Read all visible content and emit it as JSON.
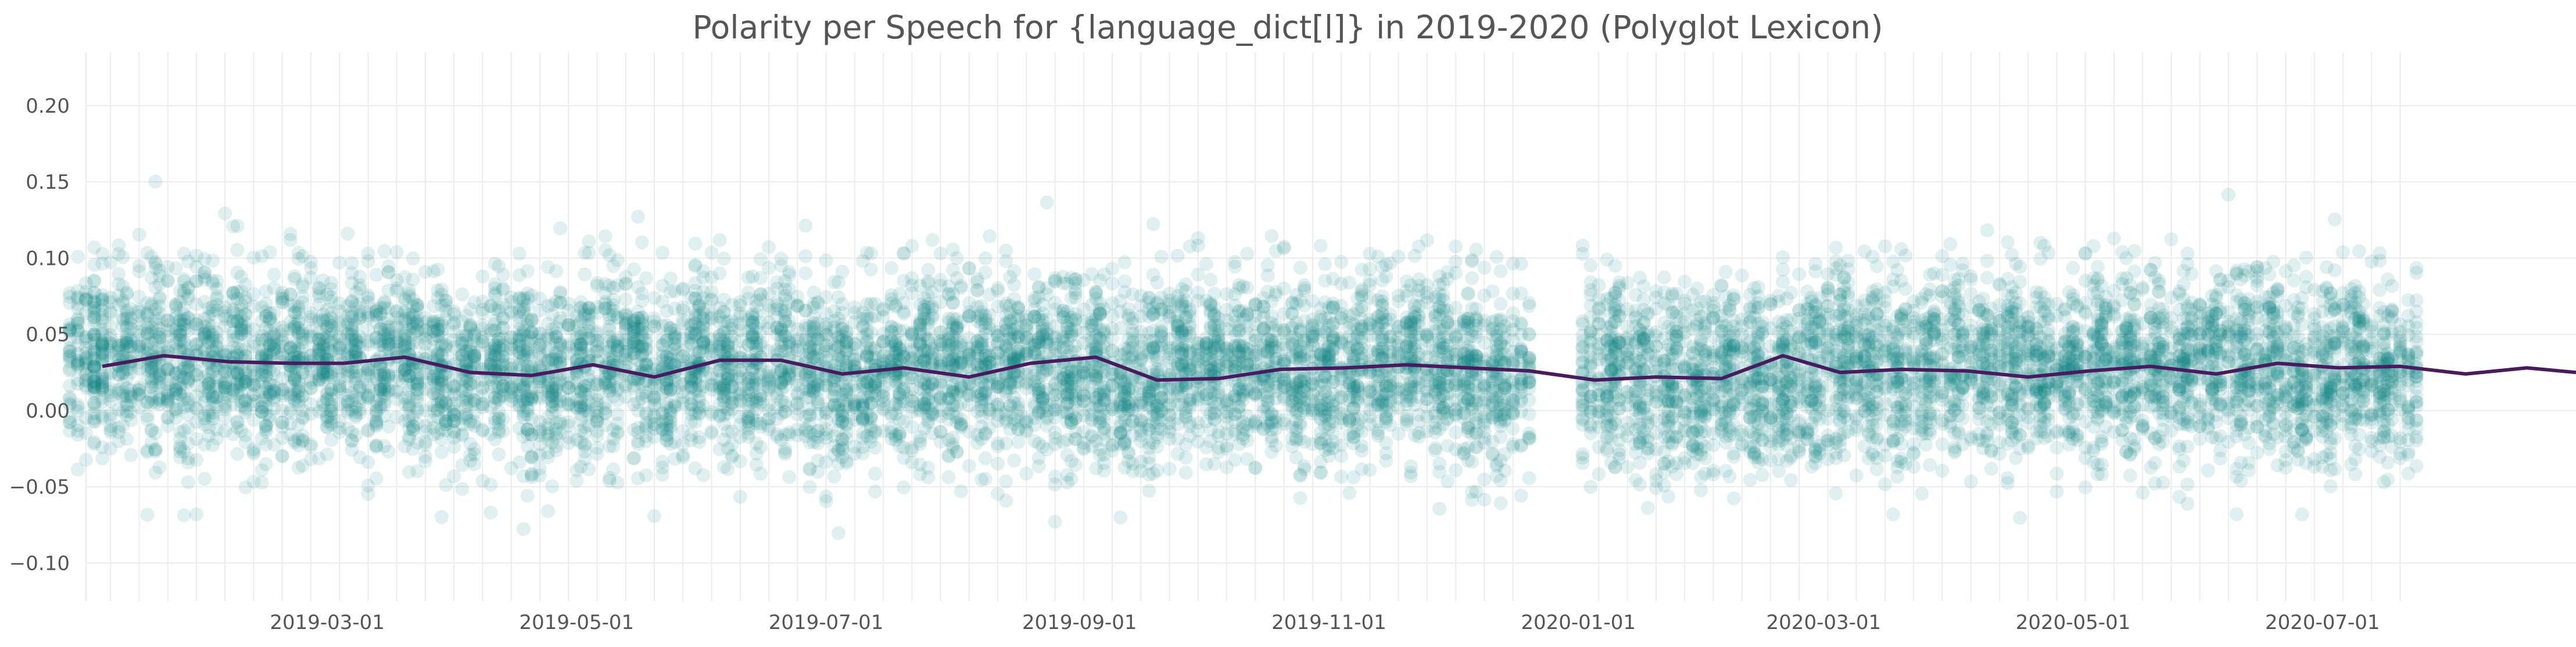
{
  "chart_data": {
    "type": "scatter",
    "title": "Polarity per Speech for {language_dict[l]} in 2019-2020 (Polyglot Lexicon)",
    "xlabel": "",
    "ylabel": "",
    "x_range": [
      "2019-01-01",
      "2020-09-01"
    ],
    "ylim": [
      -0.125,
      0.235
    ],
    "yticks": [
      -0.1,
      -0.05,
      0.0,
      0.05,
      0.1,
      0.15,
      0.2
    ],
    "ytick_labels": [
      "−0.10",
      "−0.05",
      "0.00",
      "0.05",
      "0.10",
      "0.15",
      "0.20"
    ],
    "xticks": [
      "2019-03-01",
      "2019-05-01",
      "2019-07-01",
      "2019-09-01",
      "2019-11-01",
      "2020-01-01",
      "2020-03-01",
      "2020-05-01",
      "2020-07-01"
    ],
    "xtick_labels": [
      "2019-03-01",
      "2019-05-01",
      "2019-07-01",
      "2019-09-01",
      "2019-11-01",
      "2020-01-01",
      "2020-03-01",
      "2020-05-01",
      "2020-07-01"
    ],
    "grid": true,
    "colors": {
      "points": "#0e8585",
      "line": "#4a1a5e",
      "grid": "#ececec",
      "title": "#555555",
      "ticks": "#555555"
    },
    "series": [
      {
        "type": "scatter",
        "description": "per-speech polarity, plotted per sitting day (one column per day, mean shown by line)",
        "days": [
          {
            "date": "2019-01-01",
            "mean": 0.04
          },
          {
            "date": "2019-01-07",
            "mean": 0.032
          },
          {
            "date": "2019-01-14",
            "mean": 0.036
          },
          {
            "date": "2019-01-21",
            "mean": 0.033
          },
          {
            "date": "2019-01-28",
            "mean": 0.032
          },
          {
            "date": "2019-02-04",
            "mean": 0.031
          },
          {
            "date": "2019-02-11",
            "mean": 0.029
          },
          {
            "date": "2019-02-18",
            "mean": 0.032
          },
          {
            "date": "2019-02-25",
            "mean": 0.031
          },
          {
            "date": "2019-03-04",
            "mean": 0.033
          },
          {
            "date": "2019-03-11",
            "mean": 0.034
          },
          {
            "date": "2019-03-18",
            "mean": 0.033
          },
          {
            "date": "2019-03-25",
            "mean": 0.027
          },
          {
            "date": "2019-04-01",
            "mean": 0.024
          },
          {
            "date": "2019-04-08",
            "mean": 0.023
          },
          {
            "date": "2019-04-15",
            "mean": 0.029
          },
          {
            "date": "2019-04-22",
            "mean": 0.022
          },
          {
            "date": "2019-04-29",
            "mean": 0.022
          },
          {
            "date": "2019-05-06",
            "mean": 0.033
          },
          {
            "date": "2019-05-13",
            "mean": 0.033
          },
          {
            "date": "2019-05-20",
            "mean": 0.025
          },
          {
            "date": "2019-05-27",
            "mean": 0.024
          },
          {
            "date": "2019-06-03",
            "mean": 0.028
          },
          {
            "date": "2019-06-10",
            "mean": 0.021
          },
          {
            "date": "2019-06-17",
            "mean": 0.032
          },
          {
            "date": "2019-06-24",
            "mean": 0.036
          },
          {
            "date": "2019-07-01",
            "mean": 0.02
          },
          {
            "date": "2019-07-08",
            "mean": 0.021
          },
          {
            "date": "2019-07-15",
            "mean": 0.028
          },
          {
            "date": "2019-07-22",
            "mean": 0.029
          },
          {
            "date": "2019-07-29",
            "mean": 0.03
          },
          {
            "date": "2019-08-05",
            "mean": 0.031
          },
          {
            "date": "2019-08-12",
            "mean": 0.03
          },
          {
            "date": "2019-08-19",
            "mean": 0.028
          },
          {
            "date": "2019-08-26",
            "mean": 0.029
          },
          {
            "date": "2019-09-02",
            "mean": 0.02
          },
          {
            "date": "2019-09-09",
            "mean": 0.022
          },
          {
            "date": "2019-09-16",
            "mean": 0.02
          },
          {
            "date": "2019-09-23",
            "mean": 0.027
          },
          {
            "date": "2019-09-30",
            "mean": 0.036
          },
          {
            "date": "2019-10-07",
            "mean": 0.028
          },
          {
            "date": "2019-10-14",
            "mean": 0.033
          },
          {
            "date": "2019-10-21",
            "mean": 0.026
          },
          {
            "date": "2019-10-28",
            "mean": 0.022
          },
          {
            "date": "2019-11-04",
            "mean": 0.028
          },
          {
            "date": "2019-11-11",
            "mean": 0.025
          },
          {
            "date": "2019-11-18",
            "mean": 0.034
          },
          {
            "date": "2019-11-25",
            "mean": 0.03
          },
          {
            "date": "2019-12-02",
            "mean": 0.023
          },
          {
            "date": "2019-12-09",
            "mean": 0.022
          },
          {
            "date": "2019-12-16",
            "mean": 0.018
          },
          {
            "date": "2020-01-06",
            "mean": 0.026
          },
          {
            "date": "2020-01-13",
            "mean": 0.027
          },
          {
            "date": "2020-01-20",
            "mean": 0.013
          },
          {
            "date": "2020-01-27",
            "mean": 0.018
          },
          {
            "date": "2020-02-03",
            "mean": 0.024
          },
          {
            "date": "2020-02-10",
            "mean": 0.024
          },
          {
            "date": "2020-02-17",
            "mean": 0.017
          },
          {
            "date": "2020-02-24",
            "mean": 0.02
          },
          {
            "date": "2020-03-02",
            "mean": 0.033
          },
          {
            "date": "2020-03-09",
            "mean": 0.032
          },
          {
            "date": "2020-03-16",
            "mean": 0.022
          },
          {
            "date": "2020-03-23",
            "mean": 0.023
          },
          {
            "date": "2020-03-30",
            "mean": 0.034
          },
          {
            "date": "2020-04-06",
            "mean": 0.033
          },
          {
            "date": "2020-04-13",
            "mean": 0.032
          },
          {
            "date": "2020-04-20",
            "mean": 0.031
          },
          {
            "date": "2020-04-27",
            "mean": 0.028
          },
          {
            "date": "2020-05-04",
            "mean": 0.029
          },
          {
            "date": "2020-05-11",
            "mean": 0.031
          },
          {
            "date": "2020-05-18",
            "mean": 0.03
          },
          {
            "date": "2020-05-25",
            "mean": 0.028
          },
          {
            "date": "2020-06-01",
            "mean": 0.03
          },
          {
            "date": "2020-06-08",
            "mean": 0.034
          },
          {
            "date": "2020-06-15",
            "mean": 0.028
          },
          {
            "date": "2020-06-22",
            "mean": 0.024
          },
          {
            "date": "2020-06-29",
            "mean": 0.023
          },
          {
            "date": "2020-07-06",
            "mean": 0.03
          },
          {
            "date": "2020-07-13",
            "mean": 0.026
          },
          {
            "date": "2020-07-20",
            "mean": 0.024
          }
        ]
      },
      {
        "type": "line",
        "description": "rolling mean polarity",
        "points": [
          [
            "2019-01-05",
            0.029
          ],
          [
            "2019-01-20",
            0.036
          ],
          [
            "2019-02-05",
            0.032
          ],
          [
            "2019-02-20",
            0.031
          ],
          [
            "2019-03-05",
            0.031
          ],
          [
            "2019-03-20",
            0.035
          ],
          [
            "2019-04-05",
            0.025
          ],
          [
            "2019-04-20",
            0.023
          ],
          [
            "2019-05-05",
            0.03
          ],
          [
            "2019-05-20",
            0.022
          ],
          [
            "2019-06-05",
            0.033
          ],
          [
            "2019-06-20",
            0.033
          ],
          [
            "2019-07-05",
            0.024
          ],
          [
            "2019-07-20",
            0.028
          ],
          [
            "2019-08-05",
            0.022
          ],
          [
            "2019-08-20",
            0.031
          ],
          [
            "2019-09-05",
            0.035
          ],
          [
            "2019-09-20",
            0.02
          ],
          [
            "2019-10-05",
            0.021
          ],
          [
            "2019-10-20",
            0.027
          ],
          [
            "2019-11-05",
            0.028
          ],
          [
            "2019-11-20",
            0.03
          ],
          [
            "2019-12-05",
            0.028
          ],
          [
            "2019-12-20",
            0.026
          ],
          [
            "2020-01-05",
            0.02
          ],
          [
            "2020-01-20",
            0.022
          ],
          [
            "2020-02-05",
            0.021
          ],
          [
            "2020-02-20",
            0.036
          ],
          [
            "2020-03-05",
            0.025
          ],
          [
            "2020-03-20",
            0.027
          ],
          [
            "2020-04-05",
            0.026
          ],
          [
            "2020-04-20",
            0.022
          ],
          [
            "2020-05-05",
            0.026
          ],
          [
            "2020-05-20",
            0.029
          ],
          [
            "2020-06-05",
            0.024
          ],
          [
            "2020-06-20",
            0.031
          ],
          [
            "2020-07-05",
            0.028
          ],
          [
            "2020-07-20",
            0.029
          ],
          [
            "2020-08-05",
            0.024
          ],
          [
            "2020-08-20",
            0.028
          ],
          [
            "2020-09-01",
            0.025
          ]
        ]
      }
    ]
  }
}
